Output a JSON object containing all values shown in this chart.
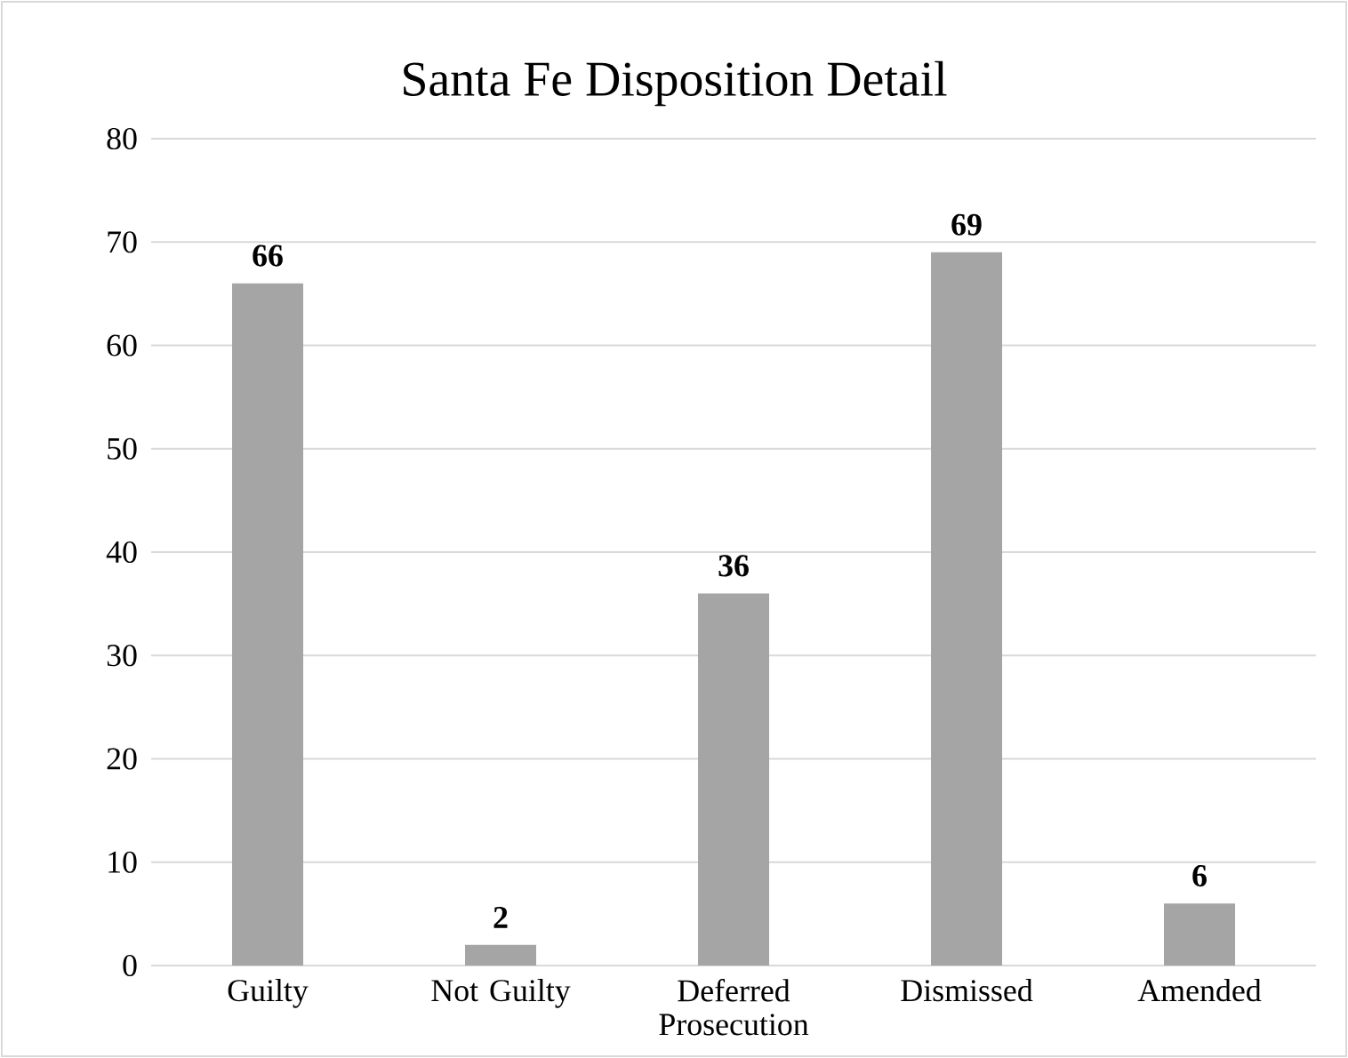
{
  "chart_data": {
    "type": "bar",
    "title": "Santa Fe Disposition Detail",
    "categories": [
      "Guilty",
      "Not Guilty",
      "Deferred Prosecution",
      "Dismissed",
      "Amended"
    ],
    "values": [
      66,
      2,
      36,
      69,
      6
    ],
    "color": "#a5a5a5",
    "ylim": [
      0,
      80
    ],
    "yticks": [
      0,
      10,
      20,
      30,
      40,
      50,
      60,
      70,
      80
    ],
    "grid": "y",
    "data_labels": true
  }
}
